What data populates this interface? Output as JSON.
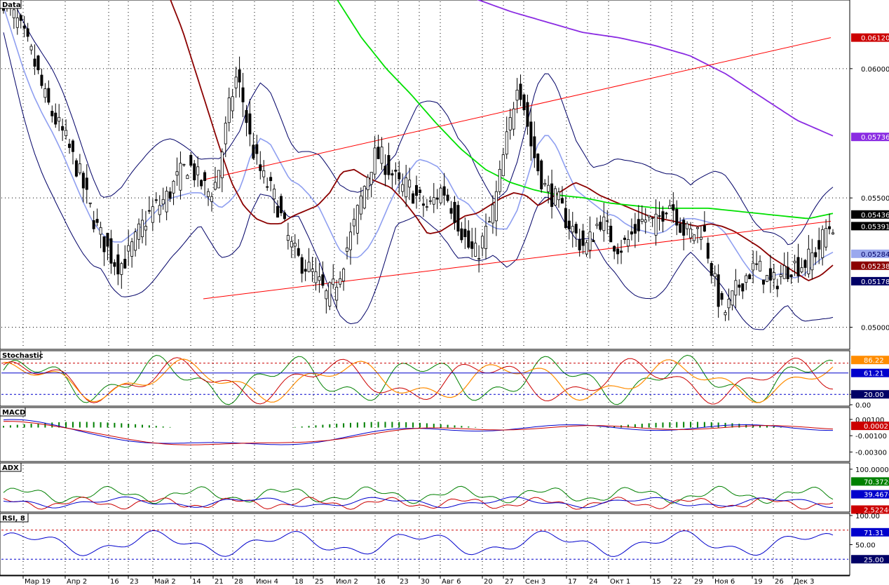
{
  "chart_data": {
    "type": "candlestick",
    "x_labels": [
      "Мар 19",
      "Апр 2",
      "16",
      "23",
      "Май 2",
      "14",
      "21",
      "28",
      "Июн 4",
      "18",
      "25",
      "Июл 2",
      "16",
      "23",
      "30",
      "Авг 6",
      "20",
      "27",
      "Сен 3",
      "17",
      "24",
      "Окт 1",
      "15",
      "22",
      "29",
      "Ноя 6",
      "19",
      "26",
      "Дек 3"
    ],
    "main": {
      "title": "Data",
      "ylim": [
        0.0492,
        0.0626
      ],
      "y_ticks": [
        "0.06000",
        "0.05500",
        "0.05000"
      ],
      "tags": [
        {
          "value": "0.06120",
          "color": "#cc0000"
        },
        {
          "value": "0.05736",
          "color": "#8a2be2"
        },
        {
          "value": "0.05436",
          "color": "#000000"
        },
        {
          "value": "0.05391",
          "color": "#000000"
        },
        {
          "value": "0.05284",
          "color": "#9aa8ee"
        },
        {
          "value": "0.05238",
          "color": "#8b0000"
        },
        {
          "value": "0.05178",
          "color": "#000066"
        }
      ]
    },
    "panels": [
      {
        "title": "Stochastic",
        "ylim": [
          0,
          100
        ],
        "y_ticks": [
          "20.00",
          "0.00"
        ],
        "tags": [
          {
            "value": "86.22",
            "color": "#ff8c00"
          },
          {
            "value": "61.21",
            "color": "#0000cc"
          },
          {
            "value": "20.00",
            "color": "#000066"
          }
        ]
      },
      {
        "title": "MACD",
        "ylim": [
          -0.004,
          0.0022
        ],
        "y_ticks": [
          "0.00100",
          "-0.00100",
          "-0.00300"
        ],
        "tags": [
          {
            "value": "0.00021",
            "color": "#cc0000"
          }
        ]
      },
      {
        "title": "ADX",
        "ylim": [
          0,
          110
        ],
        "y_ticks": [
          "100.00000"
        ],
        "tags": [
          {
            "value": "70.37260",
            "color": "#008000"
          },
          {
            "value": "39.46762",
            "color": "#0000cc"
          },
          {
            "value": "2.52240",
            "color": "#cc0000"
          }
        ]
      },
      {
        "title": "RSI, 8",
        "ylim": [
          0,
          100
        ],
        "y_ticks": [
          "100.00",
          "50.00"
        ],
        "tags": [
          {
            "value": "71.31",
            "color": "#0000cc"
          },
          {
            "value": "25.00",
            "color": "#000066"
          }
        ]
      }
    ],
    "candles": [
      0.0627,
      0.0622,
      0.0618,
      0.0612,
      0.0606,
      0.0598,
      0.0589,
      0.0583,
      0.0578,
      0.0573,
      0.0566,
      0.056,
      0.0551,
      0.0543,
      0.0536,
      0.0531,
      0.0526,
      0.0524,
      0.0527,
      0.0532,
      0.0538,
      0.0543,
      0.0546,
      0.0548,
      0.0551,
      0.0556,
      0.056,
      0.0563,
      0.0559,
      0.0555,
      0.0552,
      0.0556,
      0.057,
      0.0586,
      0.0597,
      0.0587,
      0.0572,
      0.0563,
      0.0557,
      0.0553,
      0.0547,
      0.0538,
      0.0531,
      0.0526,
      0.0524,
      0.0521,
      0.0517,
      0.0512,
      0.0514,
      0.0521,
      0.053,
      0.0538,
      0.0548,
      0.0558,
      0.0566,
      0.0566,
      0.0562,
      0.0558,
      0.0553,
      0.0555,
      0.0551,
      0.0548,
      0.0546,
      0.055,
      0.0554,
      0.0549,
      0.0543,
      0.0536,
      0.053,
      0.0528,
      0.0534,
      0.0541,
      0.0552,
      0.0567,
      0.058,
      0.0597,
      0.0585,
      0.057,
      0.0561,
      0.0554,
      0.0551,
      0.0548,
      0.0542,
      0.0538,
      0.0533,
      0.0531,
      0.0536,
      0.0542,
      0.0538,
      0.0533,
      0.0531,
      0.0533,
      0.0537,
      0.0541,
      0.0542,
      0.0539,
      0.0544,
      0.0549,
      0.0545,
      0.0538,
      0.0536,
      0.0537,
      0.0539,
      0.0526,
      0.0514,
      0.0505,
      0.0509,
      0.0515,
      0.0519,
      0.0522,
      0.0523,
      0.052,
      0.0516,
      0.0519,
      0.0522,
      0.0524,
      0.0524,
      0.0525,
      0.0528,
      0.0531,
      0.0538,
      0.054
    ],
    "bb_mid": [
      0.0624,
      0.0612,
      0.06,
      0.059,
      0.0582,
      0.0575,
      0.0567,
      0.0558,
      0.0549,
      0.0541,
      0.0536,
      0.0533,
      0.0533,
      0.0536,
      0.0539,
      0.0543,
      0.0547,
      0.055,
      0.0551,
      0.0552,
      0.0552,
      0.0549,
      0.0546,
      0.0549,
      0.0554,
      0.0566,
      0.0573,
      0.0571,
      0.0564,
      0.0557,
      0.0555,
      0.0551,
      0.0546,
      0.0538,
      0.053,
      0.0527,
      0.0527,
      0.0531,
      0.0538,
      0.0547,
      0.0555,
      0.056,
      0.0565,
      0.0564,
      0.0562,
      0.0557,
      0.055,
      0.0548,
      0.0543,
      0.054,
      0.0538,
      0.0538,
      0.0545,
      0.0557,
      0.057,
      0.0575,
      0.057,
      0.0561,
      0.0553,
      0.055,
      0.0547,
      0.0544,
      0.0543,
      0.054,
      0.0538,
      0.0537,
      0.0536,
      0.0537,
      0.054,
      0.0542,
      0.0542,
      0.0541,
      0.054,
      0.0537,
      0.0531,
      0.0525,
      0.052,
      0.0518,
      0.052,
      0.0521,
      0.0519,
      0.052,
      0.0524,
      0.0527,
      0.0529
    ],
    "sma_red": [
      0.0627,
      0.0615,
      0.06,
      0.0585,
      0.057,
      0.0556,
      0.0547,
      0.0542,
      0.054,
      0.054,
      0.0543,
      0.0545,
      0.0547,
      0.0552,
      0.056,
      0.0561,
      0.0558,
      0.0556,
      0.0554,
      0.0549,
      0.0543,
      0.0536,
      0.0537,
      0.054,
      0.0543,
      0.0544,
      0.0547,
      0.055,
      0.0552,
      0.0551,
      0.0547,
      0.055,
      0.0553,
      0.0556,
      0.0554,
      0.0551,
      0.0549,
      0.0547,
      0.0545,
      0.0543,
      0.0542,
      0.0541,
      0.054,
      0.0539,
      0.054,
      0.0539,
      0.0537,
      0.0534,
      0.0531,
      0.0527,
      0.0524,
      0.0521,
      0.0518,
      0.052,
      0.0524
    ],
    "sma_green": [
      0.0627,
      0.0612,
      0.06,
      0.059,
      0.0579,
      0.0569,
      0.0561,
      0.0556,
      0.0553,
      0.0551,
      0.055,
      0.0548,
      0.0547,
      0.0546,
      0.0546,
      0.0546,
      0.0545,
      0.0544,
      0.0543,
      0.0542,
      0.0544
    ],
    "sma_purple": [
      0.0627,
      0.0622,
      0.0618,
      0.0614,
      0.0612,
      0.0609,
      0.0605,
      0.0598,
      0.0589,
      0.058,
      0.0574
    ],
    "channel_upper": [
      [
        0.0557,
        0.0612
      ]
    ],
    "channel_lower": [
      [
        0.0511,
        0.0541
      ]
    ]
  }
}
